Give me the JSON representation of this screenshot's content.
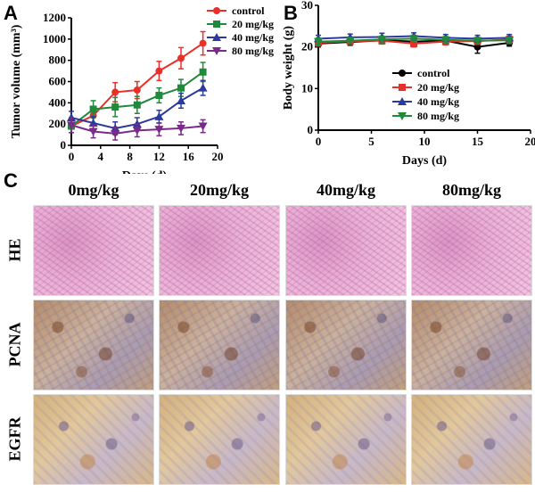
{
  "panels": {
    "a": "A",
    "b": "B",
    "c": "C"
  },
  "chart_data": [
    {
      "type": "line",
      "panel": "A",
      "xlabel": "Days (d)",
      "ylabel": "Tumor volume (mm³)",
      "xlim": [
        0,
        20
      ],
      "ylim": [
        0,
        1200
      ],
      "xticks": [
        0,
        4,
        8,
        12,
        16,
        20
      ],
      "yticks": [
        0,
        200,
        400,
        600,
        800,
        1000,
        1200
      ],
      "legend_position": "top-right",
      "series": [
        {
          "name": "control",
          "color": "#e8302a",
          "marker": "circle",
          "x": [
            0,
            3,
            6,
            9,
            12,
            15,
            18
          ],
          "y": [
            180,
            280,
            500,
            520,
            700,
            820,
            960
          ],
          "err": [
            60,
            70,
            90,
            80,
            90,
            100,
            110
          ]
        },
        {
          "name": "20 mg/kg",
          "color": "#1e8a3a",
          "marker": "square",
          "x": [
            0,
            3,
            6,
            9,
            12,
            15,
            18
          ],
          "y": [
            180,
            340,
            360,
            380,
            470,
            540,
            690
          ],
          "err": [
            60,
            80,
            90,
            80,
            70,
            80,
            90
          ]
        },
        {
          "name": "40 mg/kg",
          "color": "#2b3a9c",
          "marker": "triangle",
          "x": [
            0,
            3,
            6,
            9,
            12,
            15,
            18
          ],
          "y": [
            260,
            210,
            160,
            200,
            270,
            420,
            540
          ],
          "err": [
            60,
            60,
            60,
            60,
            60,
            70,
            70
          ]
        },
        {
          "name": "80 mg/kg",
          "color": "#7a2a8a",
          "marker": "triangle-down",
          "x": [
            0,
            3,
            6,
            9,
            12,
            15,
            18
          ],
          "y": [
            190,
            130,
            110,
            140,
            150,
            160,
            180
          ],
          "err": [
            70,
            60,
            60,
            60,
            60,
            60,
            60
          ]
        }
      ]
    },
    {
      "type": "line",
      "panel": "B",
      "xlabel": "Days (d)",
      "ylabel": "Body weight (g)",
      "xlim": [
        0,
        20
      ],
      "ylim": [
        0,
        30
      ],
      "xticks": [
        0,
        5,
        10,
        15,
        20
      ],
      "yticks": [
        0,
        10,
        20,
        30
      ],
      "legend_position": "center",
      "series": [
        {
          "name": "control",
          "color": "#000000",
          "marker": "circle",
          "x": [
            0,
            3,
            6,
            9,
            12,
            15,
            18
          ],
          "y": [
            20.8,
            21.2,
            21.6,
            21.3,
            21.5,
            20.0,
            21.0
          ],
          "err": [
            0.8,
            0.8,
            0.8,
            0.8,
            0.8,
            1.5,
            0.8
          ]
        },
        {
          "name": "20 mg/kg",
          "color": "#e8302a",
          "marker": "square",
          "x": [
            0,
            3,
            6,
            9,
            12,
            15,
            18
          ],
          "y": [
            21.0,
            21.4,
            21.5,
            20.8,
            21.3,
            21.4,
            21.8
          ],
          "err": [
            0.8,
            0.8,
            0.8,
            0.8,
            0.8,
            0.8,
            0.8
          ]
        },
        {
          "name": "40 mg/kg",
          "color": "#2b3a9c",
          "marker": "triangle",
          "x": [
            0,
            3,
            6,
            9,
            12,
            15,
            18
          ],
          "y": [
            22.0,
            22.3,
            22.4,
            22.6,
            22.2,
            22.0,
            22.2
          ],
          "err": [
            0.8,
            0.8,
            0.9,
            0.8,
            0.8,
            0.8,
            0.8
          ]
        },
        {
          "name": "80 mg/kg",
          "color": "#1e8a3a",
          "marker": "triangle-down",
          "x": [
            0,
            3,
            6,
            9,
            12,
            15,
            18
          ],
          "y": [
            21.3,
            21.5,
            21.8,
            22.0,
            21.7,
            21.5,
            21.6
          ],
          "err": [
            0.8,
            0.8,
            0.8,
            0.8,
            0.8,
            0.8,
            0.8
          ]
        }
      ]
    }
  ],
  "micrographs": {
    "columns": [
      "0mg/kg",
      "20mg/kg",
      "40mg/kg",
      "80mg/kg"
    ],
    "rows": [
      "HE",
      "PCNA",
      "EGFR"
    ]
  }
}
